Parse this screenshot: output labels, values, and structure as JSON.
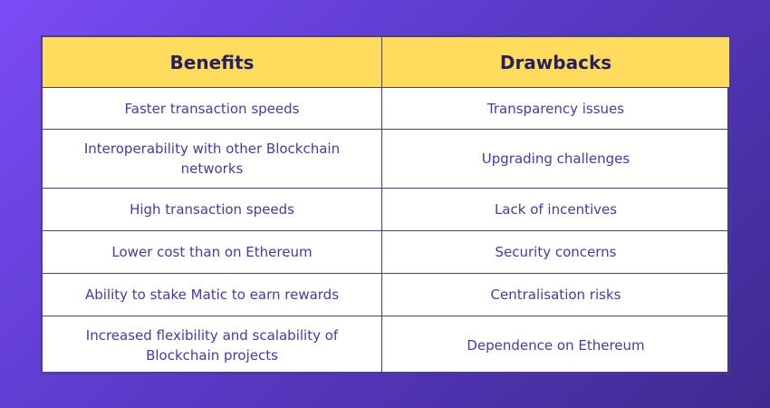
{
  "table": {
    "headers": [
      "Benefits",
      "Drawbacks"
    ],
    "rows": [
      [
        "Faster transaction speeds",
        "Transparency issues"
      ],
      [
        "Interoperability with other Blockchain networks",
        "Upgrading challenges"
      ],
      [
        "High transaction speeds",
        "Lack of incentives"
      ],
      [
        "Lower cost than on Ethereum",
        "Security concerns"
      ],
      [
        "Ability to stake Matic to earn rewards",
        "Centralisation risks"
      ],
      [
        "Increased flexibility and scalability of Blockchain projects",
        "Dependence on Ethereum"
      ]
    ]
  },
  "colors": {
    "header_background": "#ffdc5e",
    "header_text": "#2a1f5c",
    "cell_text": "#4a3a9e",
    "border": "#4a3e8a",
    "background_gradient": [
      "#7a4cf6",
      "#3e2a8f"
    ]
  }
}
